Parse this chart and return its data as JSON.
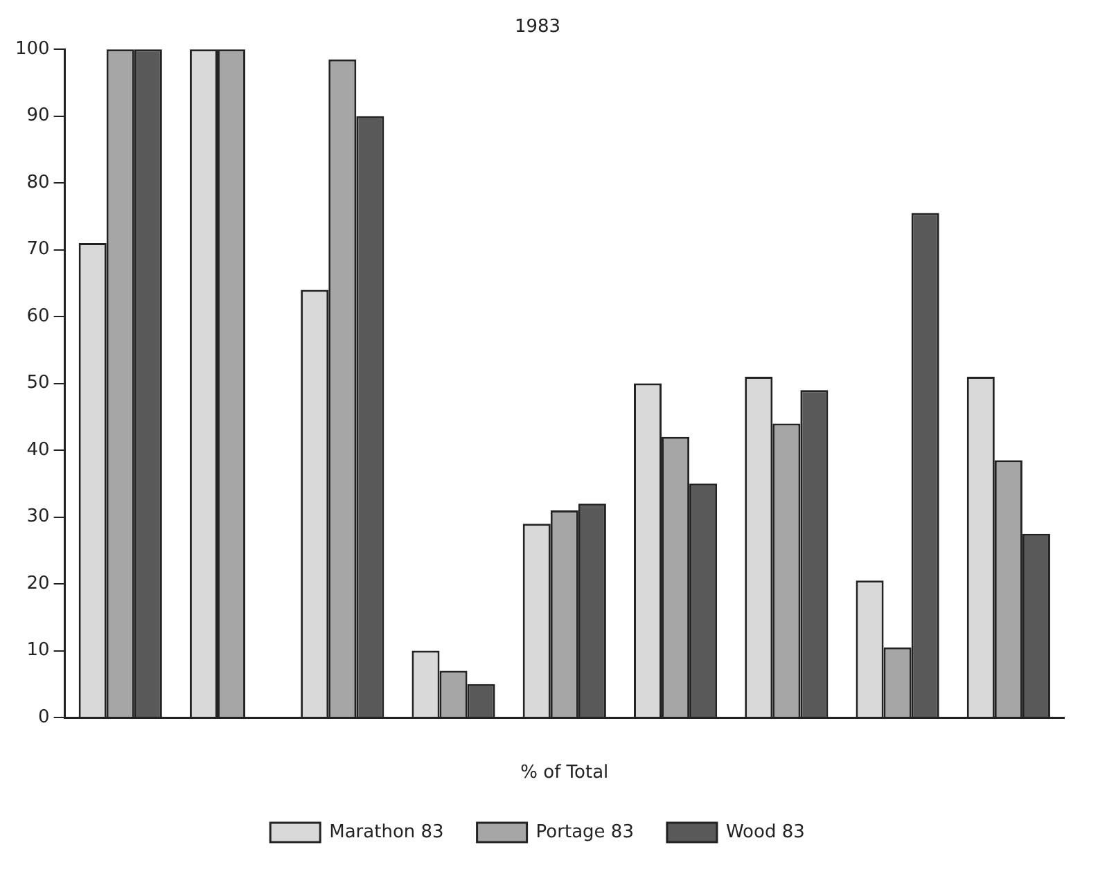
{
  "chart_data": {
    "type": "bar",
    "title": "1983",
    "xlabel": "% of Total",
    "categories": [
      null,
      null,
      null,
      null,
      null,
      null,
      null,
      null,
      null
    ],
    "series": [
      {
        "name": "Marathon 83",
        "color": "#d9d9d9",
        "values": [
          71,
          100,
          64,
          10,
          29,
          50,
          51,
          20.5,
          51
        ]
      },
      {
        "name": "Portage 83",
        "color": "#a6a6a6",
        "values": [
          100,
          100,
          98.5,
          7,
          31,
          42,
          44,
          10.5,
          38.5
        ]
      },
      {
        "name": "Wood 83",
        "color": "#595959",
        "values": [
          100,
          null,
          90,
          5,
          32,
          35,
          49,
          75.5,
          27.5
        ]
      }
    ],
    "ylim": [
      0,
      100
    ],
    "yticks": [
      0,
      10,
      20,
      30,
      40,
      50,
      60,
      70,
      80,
      90,
      100
    ],
    "grid": false,
    "legend": "bottom"
  }
}
